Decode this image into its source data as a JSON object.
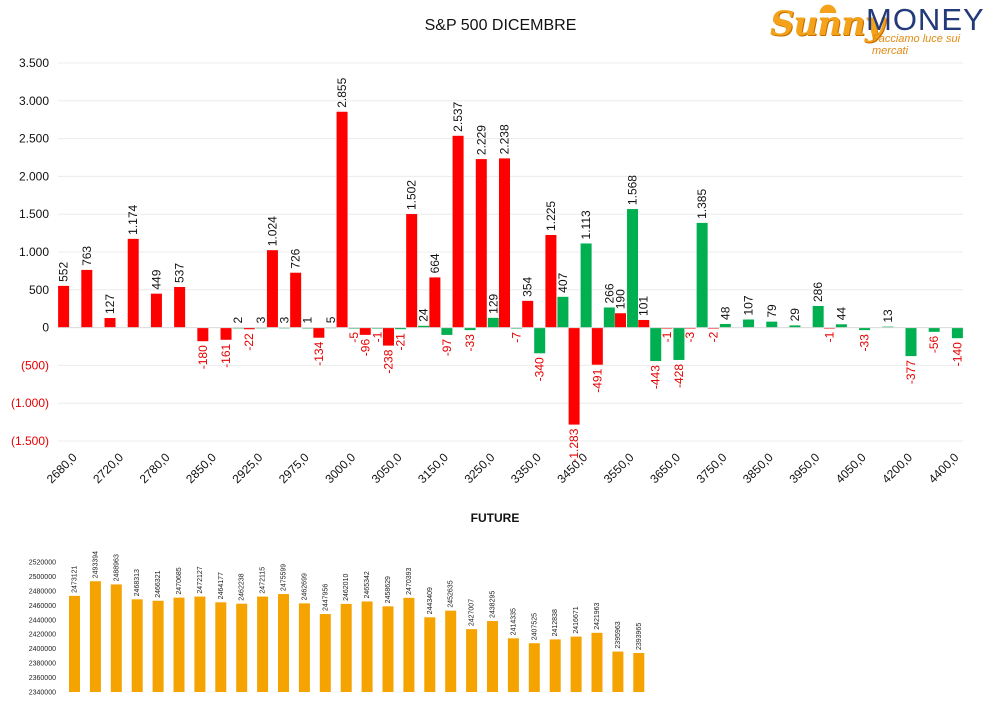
{
  "title": "S&P 500 DICEMBRE",
  "future_title": "FUTURE",
  "logo": {
    "brand_part1": "Sunny",
    "brand_part2": "MONEY",
    "tagline": "Facciamo luce sui mercati"
  },
  "colors": {
    "call": "#ff0000",
    "put": "#00b050",
    "future": "#f5a300",
    "negative_label": "#e60000"
  },
  "chart_data": [
    {
      "type": "bar",
      "title": "S&P 500 DICEMBRE",
      "ylim": [
        -1500,
        3500
      ],
      "yticks": [
        {
          "v": 3500,
          "t": "3.500"
        },
        {
          "v": 3000,
          "t": "3.000"
        },
        {
          "v": 2500,
          "t": "2.500"
        },
        {
          "v": 2000,
          "t": "2.000"
        },
        {
          "v": 1500,
          "t": "1.500"
        },
        {
          "v": 1000,
          "t": "1.000"
        },
        {
          "v": 500,
          "t": "500"
        },
        {
          "v": 0,
          "t": "0"
        },
        {
          "v": -500,
          "t": "(500)"
        },
        {
          "v": -1000,
          "t": "(1.000)"
        },
        {
          "v": -1500,
          "t": "(1.500)"
        }
      ],
      "xtick_labels": [
        {
          "s": 0,
          "t": "2680,0"
        },
        {
          "s": 2,
          "t": "2720,0"
        },
        {
          "s": 4,
          "t": "2780,0"
        },
        {
          "s": 6,
          "t": "2850,0"
        },
        {
          "s": 8,
          "t": "2925,0"
        },
        {
          "s": 10,
          "t": "2975,0"
        },
        {
          "s": 12,
          "t": "3000,0"
        },
        {
          "s": 14,
          "t": "3050,0"
        },
        {
          "s": 16,
          "t": "3150,0"
        },
        {
          "s": 18,
          "t": "3250,0"
        },
        {
          "s": 20,
          "t": "3350,0"
        },
        {
          "s": 22,
          "t": "3450,0"
        },
        {
          "s": 24,
          "t": "3550,0"
        },
        {
          "s": 26,
          "t": "3650,0"
        },
        {
          "s": 28,
          "t": "3750,0"
        },
        {
          "s": 30,
          "t": "3850,0"
        },
        {
          "s": 32,
          "t": "3950,0"
        },
        {
          "s": 34,
          "t": "4050,0"
        },
        {
          "s": 36,
          "t": "4200,0"
        },
        {
          "s": 38,
          "t": "4400,0"
        }
      ],
      "slot_count": 39,
      "series": [
        {
          "name": "call",
          "color": "#ff0000",
          "points": [
            {
              "s": 0,
              "v": 552,
              "t": "552"
            },
            {
              "s": 1,
              "v": 763,
              "t": "763"
            },
            {
              "s": 2,
              "v": 127,
              "t": "127"
            },
            {
              "s": 3,
              "v": 1174,
              "t": "1.174"
            },
            {
              "s": 4,
              "v": 449,
              "t": "449"
            },
            {
              "s": 5,
              "v": 537,
              "t": "537"
            },
            {
              "s": 6,
              "v": -180,
              "t": "-180"
            },
            {
              "s": 7,
              "v": -161,
              "t": "-161"
            },
            {
              "s": 8,
              "v": -22,
              "t": "-22"
            },
            {
              "s": 9,
              "v": 1024,
              "t": "1.024"
            },
            {
              "s": 10,
              "v": 726,
              "t": "726"
            },
            {
              "s": 11,
              "v": -134,
              "t": "-134"
            },
            {
              "s": 12,
              "v": 2855,
              "t": "2.855"
            },
            {
              "s": 13,
              "v": -96,
              "t": "-96"
            },
            {
              "s": 14,
              "v": -238,
              "t": "-238"
            },
            {
              "s": 15,
              "v": 1502,
              "t": "1.502"
            },
            {
              "s": 16,
              "v": 664,
              "t": "664"
            },
            {
              "s": 17,
              "v": 2537,
              "t": "2.537"
            },
            {
              "s": 18,
              "v": 2229,
              "t": "2.229"
            },
            {
              "s": 19,
              "v": 2238,
              "t": "2.238"
            },
            {
              "s": 20,
              "v": 354,
              "t": "354"
            },
            {
              "s": 21,
              "v": 1225,
              "t": "1.225"
            },
            {
              "s": 22,
              "v": -1283,
              "t": "-1.283"
            },
            {
              "s": 23,
              "v": -491,
              "t": "-491"
            },
            {
              "s": 24,
              "v": 190,
              "t": "190"
            },
            {
              "s": 25,
              "v": 101,
              "t": "101"
            },
            {
              "s": 26,
              "v": -1,
              "t": "-1"
            },
            {
              "s": 27,
              "v": -3,
              "t": "-3"
            },
            {
              "s": 28,
              "v": -2,
              "t": "-2"
            },
            {
              "s": 33,
              "v": -1,
              "t": "-1"
            }
          ]
        },
        {
          "name": "put",
          "color": "#00b050",
          "points": [
            {
              "s": 7,
              "v": 2,
              "t": "2"
            },
            {
              "s": 8,
              "v": 3,
              "t": "3"
            },
            {
              "s": 9,
              "v": 3,
              "t": "3"
            },
            {
              "s": 10,
              "v": 1,
              "t": "1"
            },
            {
              "s": 11,
              "v": 5,
              "t": "5"
            },
            {
              "s": 12,
              "v": -5,
              "t": "-5"
            },
            {
              "s": 13,
              "v": -1,
              "t": "-1"
            },
            {
              "s": 14,
              "v": -21,
              "t": "-21"
            },
            {
              "s": 15,
              "v": 24,
              "t": "24"
            },
            {
              "s": 16,
              "v": -97,
              "t": "-97"
            },
            {
              "s": 17,
              "v": -33,
              "t": "-33"
            },
            {
              "s": 18,
              "v": 129,
              "t": "129"
            },
            {
              "s": 19,
              "v": -7,
              "t": "-7"
            },
            {
              "s": 20,
              "v": -340,
              "t": "-340"
            },
            {
              "s": 21,
              "v": 407,
              "t": "407"
            },
            {
              "s": 22,
              "v": 1113,
              "t": "1.113"
            },
            {
              "s": 23,
              "v": 266,
              "t": "266"
            },
            {
              "s": 24,
              "v": 1568,
              "t": "1.568"
            },
            {
              "s": 25,
              "v": -443,
              "t": "-443"
            },
            {
              "s": 26,
              "v": -428,
              "t": "-428"
            },
            {
              "s": 27,
              "v": 1385,
              "t": "1.385"
            },
            {
              "s": 28,
              "v": 48,
              "t": "48"
            },
            {
              "s": 29,
              "v": 107,
              "t": "107"
            },
            {
              "s": 30,
              "v": 79,
              "t": "79"
            },
            {
              "s": 31,
              "v": 29,
              "t": "29"
            },
            {
              "s": 32,
              "v": 286,
              "t": "286"
            },
            {
              "s": 33,
              "v": 44,
              "t": "44"
            },
            {
              "s": 34,
              "v": -33,
              "t": "-33"
            },
            {
              "s": 35,
              "v": 13,
              "t": "13"
            },
            {
              "s": 36,
              "v": -377,
              "t": "-377"
            },
            {
              "s": 37,
              "v": -56,
              "t": "-56"
            },
            {
              "s": 38,
              "v": -140,
              "t": "-140"
            }
          ]
        }
      ]
    },
    {
      "type": "bar",
      "title": "FUTURE",
      "ylim": [
        2340000,
        2520000
      ],
      "yticks": [
        2520000,
        2500000,
        2480000,
        2460000,
        2440000,
        2420000,
        2400000,
        2380000,
        2360000,
        2340000
      ],
      "color": "#f5a300",
      "values": [
        2473121,
        2493394,
        2488963,
        2468313,
        2466321,
        2470685,
        2472127,
        2464177,
        2462238,
        2472115,
        2475599,
        2462699,
        2447956,
        2462010,
        2465342,
        2458629,
        2470393,
        2443409,
        2452635,
        2427007,
        2438295,
        2414335,
        2407525,
        2412838,
        2416671,
        2421963,
        2395963,
        2393965
      ]
    }
  ]
}
